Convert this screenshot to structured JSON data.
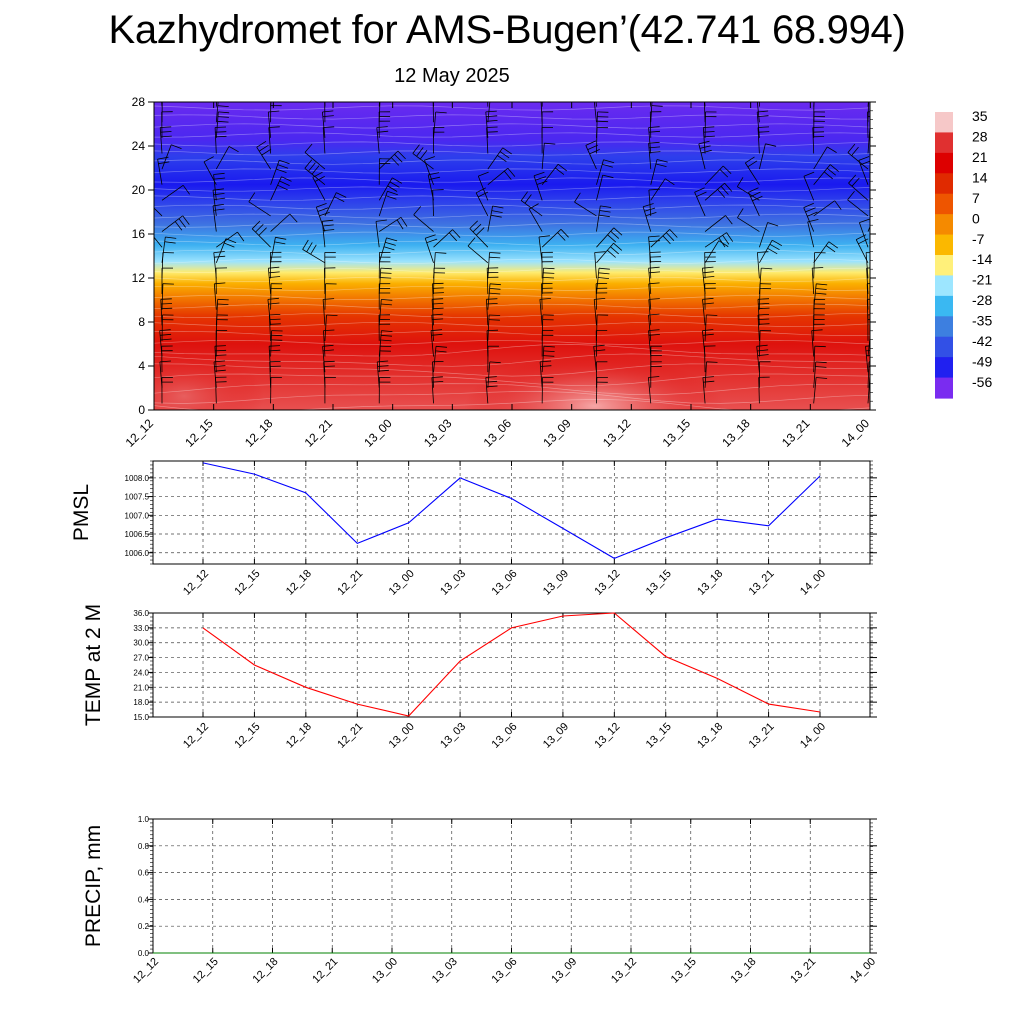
{
  "title": "Kazhydromet for AMS-Bugen’(42.741 68.994)",
  "subtitle": "12 May 2025",
  "chart_data": [
    {
      "type": "heatmap",
      "description_panel": "cross-section",
      "x_categories": [
        "12_12",
        "12_15",
        "12_18",
        "12_21",
        "13_00",
        "13_03",
        "13_06",
        "13_09",
        "13_12",
        "13_15",
        "13_18",
        "13_21",
        "14_00"
      ],
      "yticks": [
        0,
        4,
        8,
        12,
        16,
        20,
        24,
        28
      ],
      "ylim": [
        0,
        28
      ],
      "colorbar_labels": [
        "35",
        "28",
        "21",
        "14",
        "7",
        "0",
        "-7",
        "-14",
        "-21",
        "-28",
        "-35",
        "-42",
        "-49",
        "-56"
      ],
      "colorbar_colors": [
        "#f6c8c8",
        "#e03030",
        "#dd0000",
        "#e02a00",
        "#ee5500",
        "#f58a00",
        "#fbb800",
        "#fff07a",
        "#9de6ff",
        "#3ab8f2",
        "#3d7fe0",
        "#3250e6",
        "#2020f0",
        "#7a2cf0"
      ],
      "profile": [
        {
          "y": 0,
          "value": 30
        },
        {
          "y": 6,
          "value": 24
        },
        {
          "y": 8.5,
          "value": 16
        },
        {
          "y": 10,
          "value": 8
        },
        {
          "y": 11.5,
          "value": 0
        },
        {
          "y": 12.5,
          "value": -7
        },
        {
          "y": 13.5,
          "value": -15
        },
        {
          "y": 15,
          "value": -25
        },
        {
          "y": 17,
          "value": -38
        },
        {
          "y": 19,
          "value": -48
        },
        {
          "y": 20.5,
          "value": -53
        },
        {
          "y": 23,
          "value": -48
        },
        {
          "y": 24.5,
          "value": -56
        },
        {
          "y": 28,
          "value": -58
        }
      ],
      "wind_barbs": true
    },
    {
      "type": "line",
      "ylabel": "PMSL",
      "categories": [
        "12_12",
        "12_15",
        "12_18",
        "12_21",
        "13_00",
        "13_03",
        "13_06",
        "13_09",
        "13_12",
        "13_15",
        "13_18",
        "13_21",
        "14_00"
      ],
      "values": [
        1008.4,
        1008.1,
        1007.6,
        1006.25,
        1006.8,
        1008.0,
        1007.45,
        1006.65,
        1005.85,
        1006.4,
        1006.9,
        1006.72,
        1008.05
      ],
      "ylim": [
        1005.7,
        1008.45
      ],
      "yticks": [
        "1006.0",
        "1006.5",
        "1007.0",
        "1007.5",
        "1008.0"
      ],
      "ytick_values": [
        1006.0,
        1006.5,
        1007.0,
        1007.5,
        1008.0
      ],
      "color": "#0000ff",
      "grid": true
    },
    {
      "type": "line",
      "ylabel": "TEMP at 2 M",
      "categories": [
        "12_12",
        "12_15",
        "12_18",
        "12_21",
        "13_00",
        "13_03",
        "13_06",
        "13_09",
        "13_12",
        "13_15",
        "13_18",
        "13_21",
        "14_00"
      ],
      "values": [
        33.0,
        25.5,
        21.0,
        17.6,
        15.2,
        26.3,
        33.0,
        35.4,
        36.0,
        27.2,
        22.8,
        17.6,
        16.0
      ],
      "ylim": [
        15,
        36
      ],
      "yticks": [
        "15.0",
        "18.0",
        "21.0",
        "24.0",
        "27.0",
        "30.0",
        "33.0",
        "36.0"
      ],
      "ytick_values": [
        15,
        18,
        21,
        24,
        27,
        30,
        33,
        36
      ],
      "color": "#ff0000",
      "grid": true
    },
    {
      "type": "line",
      "ylabel": "PRECIP, mm",
      "categories": [
        "12_12",
        "12_15",
        "12_18",
        "12_21",
        "13_00",
        "13_03",
        "13_06",
        "13_09",
        "13_12",
        "13_15",
        "13_18",
        "13_21",
        "14_00"
      ],
      "values": [
        0,
        0,
        0,
        0,
        0,
        0,
        0,
        0,
        0,
        0,
        0,
        0,
        0
      ],
      "ylim": [
        0,
        1
      ],
      "yticks": [
        "0.0",
        "0.2",
        "0.4",
        "0.6",
        "0.8",
        "1.0"
      ],
      "ytick_values": [
        0,
        0.2,
        0.4,
        0.6,
        0.8,
        1.0
      ],
      "color": "#008000",
      "grid": true
    }
  ]
}
